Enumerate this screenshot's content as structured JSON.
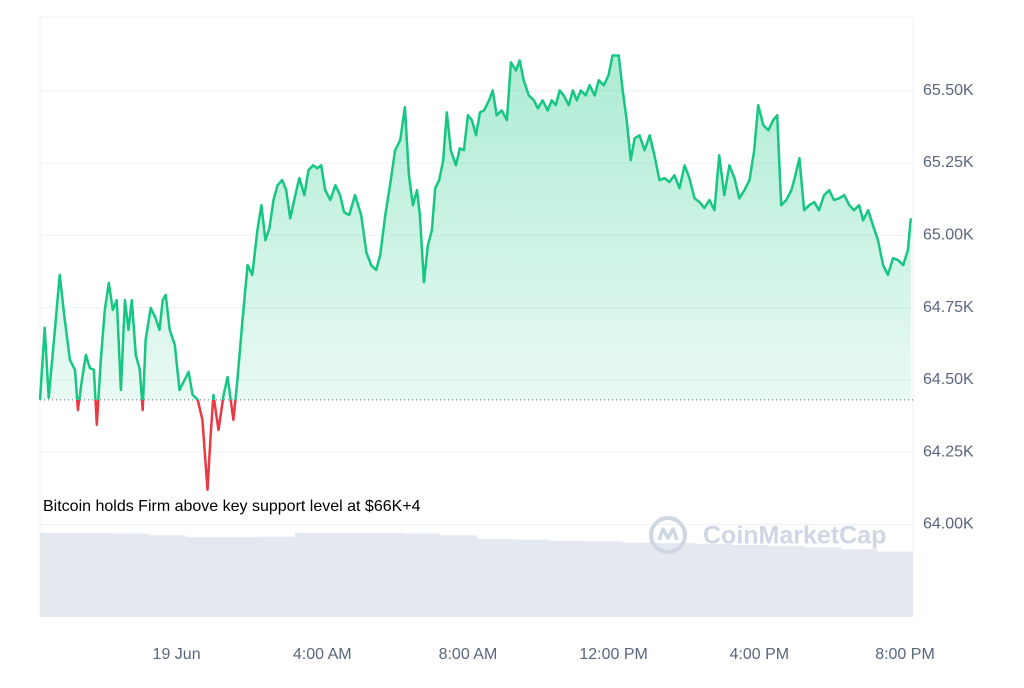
{
  "chart_data": {
    "type": "line",
    "annotation": "Bitcoin holds Firm above key support level at $66K+4",
    "watermark": "CoinMarketCap",
    "xlim": [
      -3.75,
      20.22
    ],
    "ylim": [
      63.68,
      65.755
    ],
    "y2lim": [
      0,
      100
    ],
    "baseline": 64.431,
    "grid": true,
    "up_color": "#16c784",
    "down_color": "#ea3943",
    "xticks": [
      {
        "value": 0,
        "label": "19 Jun"
      },
      {
        "value": 4,
        "label": "4:00 AM"
      },
      {
        "value": 8,
        "label": "8:00 AM"
      },
      {
        "value": 12,
        "label": "12:00 PM"
      },
      {
        "value": 16,
        "label": "4:00 PM"
      },
      {
        "value": 20,
        "label": "8:00 PM"
      }
    ],
    "yticks": [
      {
        "value": 64,
        "label": "64.00K"
      },
      {
        "value": 64.25,
        "label": "64.25K"
      },
      {
        "value": 64.5,
        "label": "64.50K"
      },
      {
        "value": 64.75,
        "label": "64.75K"
      },
      {
        "value": 65,
        "label": "65.00K"
      },
      {
        "value": 65.25,
        "label": "65.25K"
      },
      {
        "value": 65.5,
        "label": "65.50K"
      }
    ],
    "series": [
      {
        "color": "#16c784",
        "x": [
          -3.75,
          -3.62,
          -3.51,
          -3.34,
          -3.21,
          -3.07,
          -2.93,
          -2.79,
          -2.71,
          -2.6,
          -2.49,
          -2.38,
          -2.27,
          -2.19,
          -2.08,
          -1.97,
          -1.86,
          -1.75,
          -1.64,
          -1.53,
          -1.42,
          -1.32,
          -1.23,
          -1.12,
          -1.01,
          -0.93,
          -0.85,
          -0.71,
          -0.58,
          -0.47,
          -0.38,
          -0.3,
          -0.19,
          -0.05,
          0.08,
          0.22,
          0.33,
          0.44,
          0.58,
          0.71,
          0.85,
          0.93,
          1.01,
          1.15,
          1.29,
          1.4,
          1.56,
          1.67,
          1.81,
          1.95,
          2.08,
          2.22,
          2.33,
          2.44,
          2.55,
          2.66,
          2.77,
          2.9,
          3.01,
          3.12,
          3.26,
          3.37,
          3.51,
          3.62,
          3.75,
          3.86,
          3.97,
          4.08,
          4.22,
          4.36,
          4.49,
          4.6,
          4.74,
          4.9,
          5.07,
          5.21,
          5.34,
          5.48,
          5.59,
          5.73,
          5.86,
          6.0,
          6.14,
          6.27,
          6.38,
          6.49,
          6.6,
          6.68,
          6.79,
          6.9,
          7.01,
          7.1,
          7.21,
          7.32,
          7.42,
          7.53,
          7.67,
          7.78,
          7.89,
          8.0,
          8.11,
          8.22,
          8.33,
          8.44,
          8.58,
          8.68,
          8.79,
          8.93,
          9.07,
          9.18,
          9.32,
          9.42,
          9.53,
          9.67,
          9.81,
          9.92,
          10.05,
          10.19,
          10.3,
          10.41,
          10.52,
          10.63,
          10.77,
          10.88,
          10.99,
          11.1,
          11.23,
          11.34,
          11.48,
          11.59,
          11.73,
          11.86,
          11.97,
          12.14,
          12.25,
          12.36,
          12.47,
          12.58,
          12.71,
          12.85,
          12.99,
          13.12,
          13.26,
          13.4,
          13.53,
          13.67,
          13.81,
          13.95,
          14.08,
          14.22,
          14.36,
          14.49,
          14.63,
          14.77,
          14.9,
          15.04,
          15.18,
          15.32,
          15.45,
          15.59,
          15.73,
          15.86,
          15.97,
          16.11,
          16.25,
          16.38,
          16.49,
          16.6,
          16.74,
          16.88,
          16.99,
          17.1,
          17.23,
          17.37,
          17.51,
          17.64,
          17.78,
          17.92,
          18.05,
          18.19,
          18.33,
          18.47,
          18.6,
          18.74,
          18.85,
          18.99,
          19.12,
          19.26,
          19.4,
          19.53,
          19.67,
          19.81,
          19.95,
          20.08,
          20.16
        ],
        "values": [
          64.431,
          64.68,
          64.438,
          64.673,
          64.863,
          64.707,
          64.569,
          64.535,
          64.396,
          64.5,
          64.586,
          64.541,
          64.535,
          64.345,
          64.569,
          64.742,
          64.835,
          64.742,
          64.776,
          64.465,
          64.776,
          64.673,
          64.776,
          64.586,
          64.535,
          64.396,
          64.638,
          64.749,
          64.714,
          64.673,
          64.776,
          64.794,
          64.673,
          64.621,
          64.465,
          64.5,
          64.528,
          64.448,
          64.431,
          64.362,
          64.12,
          64.293,
          64.448,
          64.327,
          64.448,
          64.51,
          64.362,
          64.5,
          64.707,
          64.897,
          64.863,
          65.018,
          65.104,
          64.983,
          65.025,
          65.122,
          65.173,
          65.191,
          65.156,
          65.059,
          65.139,
          65.198,
          65.139,
          65.225,
          65.242,
          65.232,
          65.242,
          65.156,
          65.122,
          65.173,
          65.139,
          65.08,
          65.07,
          65.139,
          65.07,
          64.942,
          64.897,
          64.88,
          64.932,
          65.07,
          65.173,
          65.294,
          65.329,
          65.443,
          65.208,
          65.104,
          65.156,
          65.07,
          64.838,
          64.966,
          65.018,
          65.163,
          65.191,
          65.26,
          65.425,
          65.294,
          65.242,
          65.301,
          65.294,
          65.415,
          65.398,
          65.346,
          65.425,
          65.432,
          65.467,
          65.501,
          65.415,
          65.432,
          65.398,
          65.598,
          65.57,
          65.605,
          65.536,
          65.484,
          65.467,
          65.439,
          65.467,
          65.432,
          65.467,
          65.45,
          65.501,
          65.484,
          65.45,
          65.501,
          65.467,
          65.501,
          65.484,
          65.519,
          65.484,
          65.536,
          65.519,
          65.553,
          65.622,
          65.622,
          65.501,
          65.398,
          65.26,
          65.336,
          65.346,
          65.294,
          65.346,
          65.277,
          65.191,
          65.198,
          65.184,
          65.208,
          65.163,
          65.242,
          65.198,
          65.128,
          65.115,
          65.094,
          65.122,
          65.087,
          65.277,
          65.139,
          65.242,
          65.198,
          65.128,
          65.156,
          65.191,
          65.294,
          65.45,
          65.381,
          65.363,
          65.398,
          65.415,
          65.104,
          65.122,
          65.156,
          65.208,
          65.267,
          65.087,
          65.104,
          65.115,
          65.087,
          65.139,
          65.156,
          65.122,
          65.128,
          65.139,
          65.104,
          65.087,
          65.104,
          65.052,
          65.087,
          65.035,
          64.983,
          64.897,
          64.863,
          64.921,
          64.914,
          64.897,
          64.949,
          65.059
        ]
      },
      {
        "color": "#e4e8ef",
        "axis": "y2",
        "x": [
          -3.75,
          -2.75,
          -1.75,
          -0.75,
          0.25,
          1.25,
          2.25,
          3.25,
          4.25,
          5.25,
          6.25,
          7.25,
          8.25,
          9.25,
          10.25,
          11.25,
          12.25,
          13.25,
          14.25,
          15.25,
          16.25,
          17.25,
          18.25,
          19.25
        ],
        "values": [
          14.0,
          14.0,
          13.9,
          13.6,
          13.3,
          13.3,
          13.4,
          14.0,
          14.0,
          14.0,
          13.9,
          13.6,
          13.0,
          12.9,
          12.7,
          12.6,
          12.4,
          12.3,
          12.2,
          12.0,
          11.8,
          11.6,
          11.3,
          10.9
        ]
      }
    ]
  }
}
